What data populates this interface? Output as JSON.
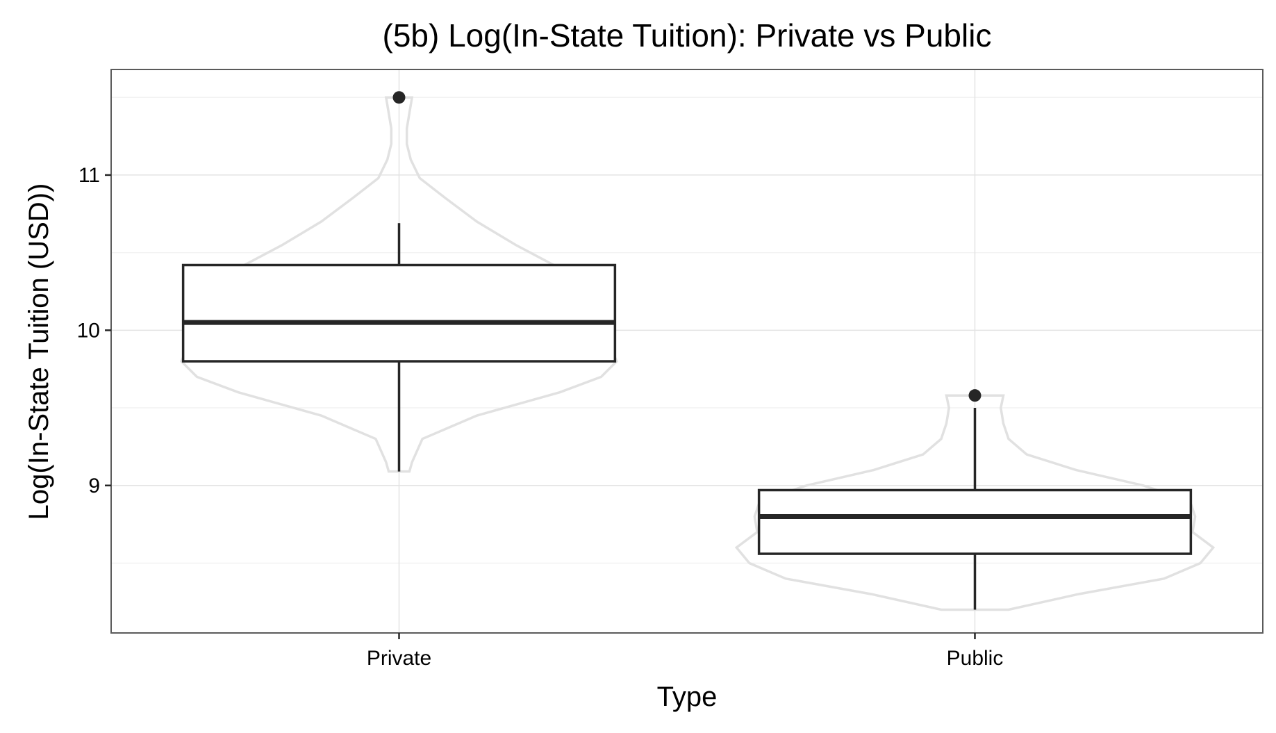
{
  "chart_data": {
    "type": "box",
    "title": "(5b) Log(In-State Tuition): Private vs Public",
    "xlabel": "Type",
    "ylabel": "Log(In-State Tuition (USD))",
    "ylim": [
      8.05,
      11.68
    ],
    "y_major_ticks": [
      9,
      10,
      11
    ],
    "y_minor_ticks": [
      8.5,
      9.5,
      10.5,
      11.5
    ],
    "grid": true,
    "legend": "none",
    "categories": [
      "Private",
      "Public"
    ],
    "boxes": [
      {
        "category": "Private",
        "whisker_low": 9.09,
        "q1": 9.8,
        "median": 10.05,
        "q3": 10.42,
        "whisker_high": 10.69,
        "outliers": [
          11.5
        ]
      },
      {
        "category": "Public",
        "whisker_low": 8.2,
        "q1": 8.56,
        "median": 8.8,
        "q3": 8.97,
        "whisker_high": 9.5,
        "outliers": [
          9.58
        ]
      }
    ],
    "violins": [
      {
        "category": "Private",
        "profile": [
          [
            9.09,
            0.04
          ],
          [
            9.15,
            0.05
          ],
          [
            9.3,
            0.09
          ],
          [
            9.45,
            0.3
          ],
          [
            9.6,
            0.62
          ],
          [
            9.7,
            0.78
          ],
          [
            9.8,
            0.84
          ],
          [
            9.95,
            0.8
          ],
          [
            10.1,
            0.72
          ],
          [
            10.25,
            0.69
          ],
          [
            10.4,
            0.62
          ],
          [
            10.55,
            0.45
          ],
          [
            10.7,
            0.3
          ],
          [
            10.85,
            0.18
          ],
          [
            10.98,
            0.08
          ],
          [
            11.1,
            0.045
          ],
          [
            11.2,
            0.03
          ],
          [
            11.3,
            0.03
          ],
          [
            11.4,
            0.04
          ],
          [
            11.5,
            0.05
          ]
        ]
      },
      {
        "category": "Public",
        "profile": [
          [
            8.2,
            0.13
          ],
          [
            8.3,
            0.4
          ],
          [
            8.4,
            0.73
          ],
          [
            8.5,
            0.87
          ],
          [
            8.6,
            0.92
          ],
          [
            8.7,
            0.84
          ],
          [
            8.8,
            0.85
          ],
          [
            8.9,
            0.83
          ],
          [
            9.0,
            0.65
          ],
          [
            9.1,
            0.39
          ],
          [
            9.2,
            0.2
          ],
          [
            9.3,
            0.13
          ],
          [
            9.4,
            0.11
          ],
          [
            9.5,
            0.1
          ],
          [
            9.58,
            0.11
          ]
        ]
      }
    ]
  }
}
